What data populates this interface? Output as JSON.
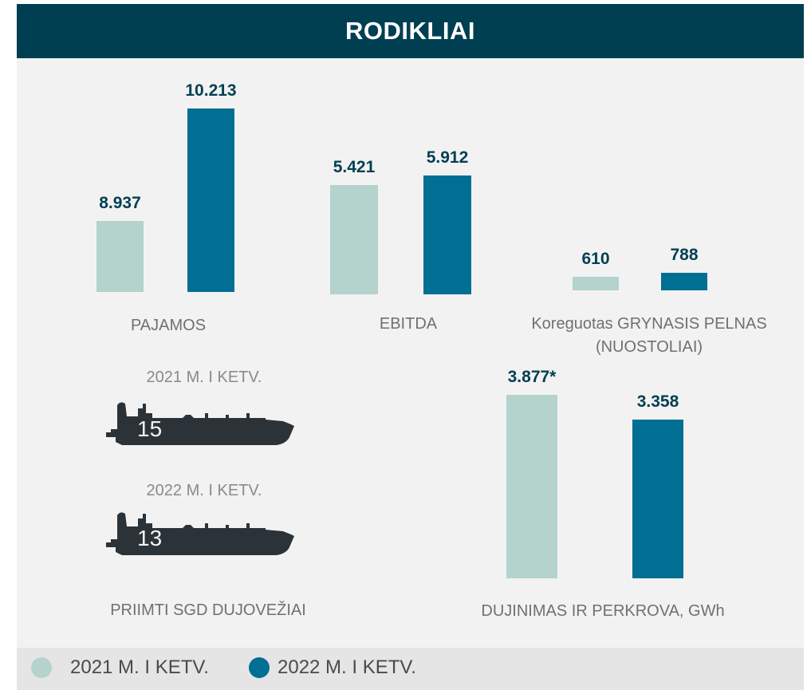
{
  "title": "RODIKLIAI",
  "chart_data": [
    {
      "type": "bar",
      "label": "PAJAMOS",
      "ylim": [
        8.13,
        10.3
      ],
      "series": [
        {
          "name": "2021 M. I KETV.",
          "color": "#b3d3cc",
          "values": [
            8.937
          ]
        },
        {
          "name": "2022 M. I KETV.",
          "color": "#006f93",
          "values": [
            10.213
          ]
        }
      ]
    },
    {
      "type": "bar",
      "label": "EBITDA",
      "ylim": [
        0,
        9.5
      ],
      "series": [
        {
          "name": "2021 M. I KETV.",
          "color": "#b3d3cc",
          "values": [
            5.421
          ]
        },
        {
          "name": "2022 M. I KETV.",
          "color": "#006f93",
          "values": [
            5.912
          ]
        }
      ]
    },
    {
      "type": "bar",
      "label": "Koreguotas GRYNASIS PELNAS (NUOSTOLIAI)",
      "ylim": [
        0,
        8600
      ],
      "series": [
        {
          "name": "2021 M. I KETV.",
          "color": "#b3d3cc",
          "values": [
            610
          ]
        },
        {
          "name": "2022 M. I KETV.",
          "color": "#006f93",
          "values": [
            788
          ]
        }
      ]
    },
    {
      "type": "pictogram",
      "label": "PRIIMTI SGD DUJOVEŽIAI",
      "color": "#2b3338",
      "items": [
        {
          "period": "2021 M. I KETV.",
          "value": 15
        },
        {
          "period": "2022 M. I KETV.",
          "value": 13
        }
      ]
    },
    {
      "type": "bar",
      "label": "DUJINIMAS IR PERKROVA, GWh",
      "ylim": [
        0,
        4.05
      ],
      "series": [
        {
          "name": "2021 M. I KETV.",
          "color": "#b3d3cc",
          "values": [
            3.877
          ],
          "value_labels": [
            "3.877*"
          ]
        },
        {
          "name": "2022 M. I KETV.",
          "color": "#006f93",
          "values": [
            3.358
          ]
        }
      ]
    }
  ]
}
